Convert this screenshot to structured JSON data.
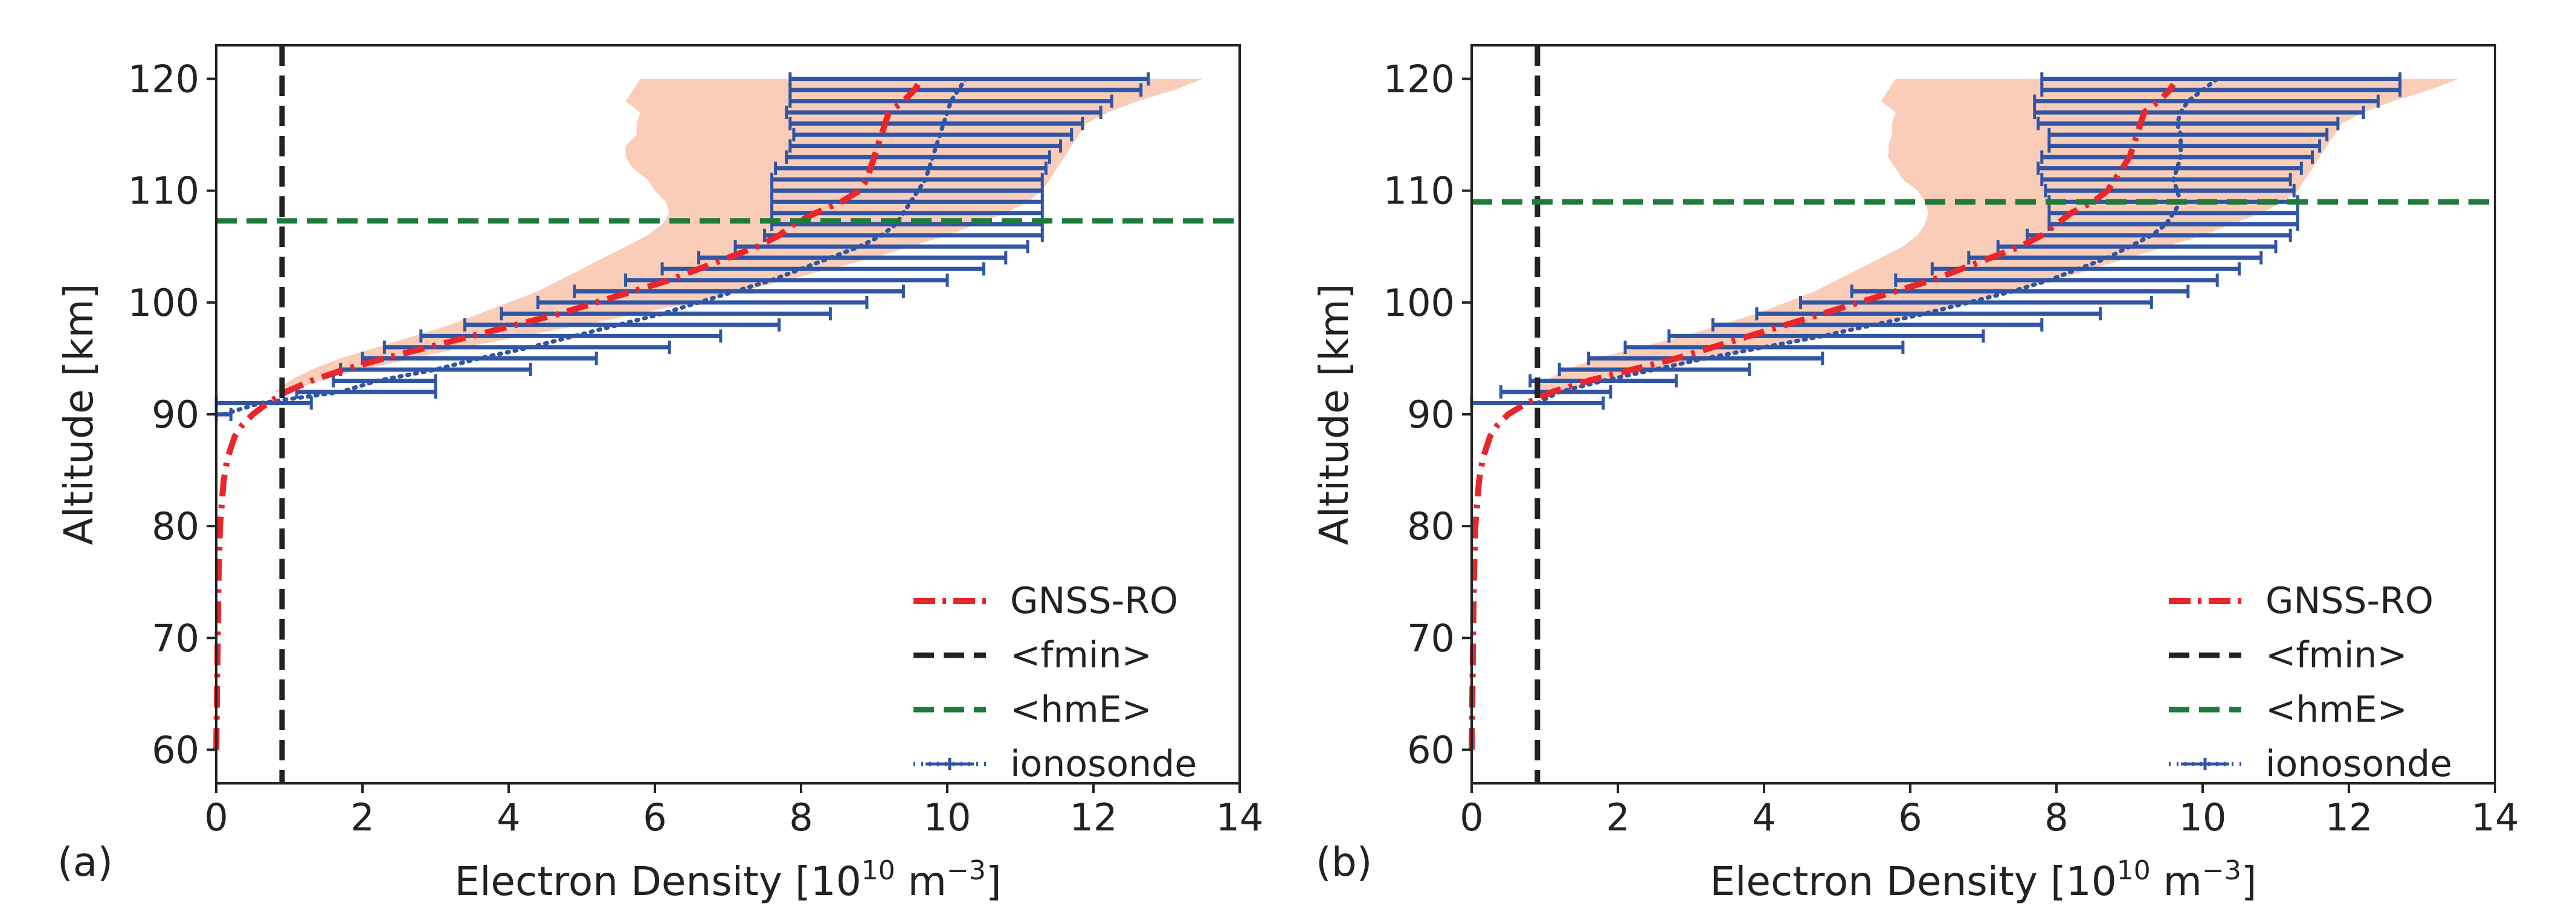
{
  "chart_data": [
    {
      "type": "line",
      "panel_label": "(a)",
      "xlabel": "Electron Density [10",
      "xlabel_exp": "10",
      "xlabel_unit": " m",
      "xlabel_unit_exp": "−3",
      "xlabel_close": "]",
      "ylabel": "Altitude [km]",
      "xlim": [
        0,
        14
      ],
      "ylim": [
        57,
        123
      ],
      "xticks": [
        0,
        2,
        4,
        6,
        8,
        10,
        12,
        14
      ],
      "yticks": [
        60,
        70,
        80,
        90,
        100,
        110,
        120
      ],
      "legend_position": "lower-right",
      "legend": [
        "GNSS-RO",
        "<fmin>",
        "<hmE>",
        "ionosonde"
      ],
      "fmin": 0.9,
      "hmE": 107.3,
      "gnss_ro": {
        "altitude": [
          60,
          65,
          70,
          75,
          80,
          84,
          86,
          88,
          89,
          90,
          91,
          92,
          93,
          94,
          95,
          96,
          97,
          98,
          99,
          100,
          101,
          102,
          103,
          104,
          105,
          106,
          107,
          108,
          109,
          110,
          111,
          112,
          113,
          114,
          115,
          116,
          117,
          118,
          119,
          119.5
        ],
        "density": [
          0.0,
          0.01,
          0.02,
          0.03,
          0.05,
          0.1,
          0.15,
          0.25,
          0.35,
          0.5,
          0.7,
          0.95,
          1.3,
          1.75,
          2.3,
          2.9,
          3.5,
          4.1,
          4.7,
          5.2,
          5.7,
          6.2,
          6.6,
          7.0,
          7.4,
          7.7,
          7.9,
          8.2,
          8.55,
          8.8,
          8.9,
          8.95,
          9.0,
          9.05,
          9.1,
          9.15,
          9.2,
          9.4,
          9.55,
          9.6
        ]
      },
      "spread_band": {
        "altitude": [
          92,
          93,
          94,
          95,
          96,
          97,
          98,
          99,
          100,
          101,
          102,
          103,
          104,
          105,
          106,
          107,
          108,
          109,
          110,
          111,
          112,
          113,
          114,
          115,
          116,
          117,
          118,
          119,
          120
        ],
        "lower": [
          0.8,
          1.0,
          1.3,
          1.7,
          2.2,
          2.7,
          3.2,
          3.6,
          4.0,
          4.4,
          4.7,
          5.0,
          5.3,
          5.6,
          5.9,
          6.1,
          6.2,
          6.15,
          6.0,
          5.9,
          5.7,
          5.6,
          5.6,
          5.75,
          5.75,
          5.8,
          5.6,
          5.7,
          5.8
        ],
        "upper": [
          1.0,
          1.4,
          2.0,
          2.7,
          3.4,
          4.2,
          5.0,
          5.8,
          6.5,
          7.2,
          7.8,
          8.4,
          9.0,
          9.5,
          10.0,
          10.4,
          10.8,
          11.1,
          11.3,
          11.4,
          11.5,
          11.6,
          11.7,
          11.8,
          11.9,
          12.2,
          12.6,
          13.1,
          13.5
        ]
      },
      "ionosonde": {
        "altitude": [
          90,
          91,
          92,
          93,
          94,
          95,
          96,
          97,
          98,
          99,
          100,
          101,
          102,
          103,
          104,
          105,
          106,
          107,
          108,
          109,
          110,
          111,
          112,
          113,
          114,
          115,
          116,
          117,
          118,
          119,
          120
        ],
        "density": [
          0.1,
          0.6,
          1.7,
          2.2,
          3.0,
          3.6,
          4.3,
          4.9,
          5.5,
          6.1,
          6.6,
          7.1,
          7.6,
          8.0,
          8.4,
          8.8,
          9.1,
          9.3,
          9.4,
          9.5,
          9.6,
          9.7,
          9.75,
          9.8,
          9.85,
          9.9,
          9.95,
          10.0,
          10.05,
          10.15,
          10.25
        ],
        "xerr_low": [
          0.1,
          0.6,
          0.6,
          0.6,
          1.3,
          1.6,
          2.0,
          2.1,
          2.1,
          2.2,
          2.2,
          2.2,
          2.0,
          1.9,
          1.8,
          1.7,
          1.6,
          1.7,
          1.8,
          1.9,
          2.0,
          2.1,
          2.1,
          2.0,
          2.0,
          2.0,
          2.1,
          2.2,
          2.2,
          2.3,
          2.4
        ],
        "xerr_high": [
          0.1,
          0.7,
          1.3,
          0.8,
          1.3,
          1.6,
          1.9,
          2.0,
          2.2,
          2.3,
          2.3,
          2.3,
          2.4,
          2.5,
          2.4,
          2.3,
          2.2,
          2.0,
          1.9,
          1.8,
          1.7,
          1.6,
          1.6,
          1.6,
          1.7,
          1.8,
          1.9,
          2.1,
          2.2,
          2.5,
          2.5
        ]
      }
    },
    {
      "type": "line",
      "panel_label": "(b)",
      "xlabel": "Electron Density [10",
      "xlabel_exp": "10",
      "xlabel_unit": " m",
      "xlabel_unit_exp": "−3",
      "xlabel_close": "]",
      "ylabel": "Altitude [km]",
      "xlim": [
        0,
        14
      ],
      "ylim": [
        57,
        123
      ],
      "xticks": [
        0,
        2,
        4,
        6,
        8,
        10,
        12,
        14
      ],
      "yticks": [
        60,
        70,
        80,
        90,
        100,
        110,
        120
      ],
      "legend_position": "lower-right",
      "legend": [
        "GNSS-RO",
        "<fmin>",
        "<hmE>",
        "ionosonde"
      ],
      "fmin": 0.9,
      "hmE": 109.0,
      "gnss_ro": {
        "altitude": [
          60,
          65,
          70,
          75,
          80,
          84,
          86,
          88,
          89,
          90,
          91,
          92,
          93,
          94,
          95,
          96,
          97,
          98,
          99,
          100,
          101,
          102,
          103,
          104,
          105,
          106,
          107,
          108,
          109,
          110,
          111,
          112,
          113,
          114,
          115,
          116,
          117,
          118,
          119,
          119.5
        ],
        "density": [
          0.0,
          0.01,
          0.02,
          0.03,
          0.05,
          0.1,
          0.15,
          0.25,
          0.35,
          0.5,
          0.75,
          1.1,
          1.6,
          2.2,
          2.8,
          3.3,
          3.8,
          4.3,
          4.8,
          5.3,
          5.8,
          6.3,
          6.7,
          7.1,
          7.5,
          7.8,
          8.0,
          8.2,
          8.5,
          8.7,
          8.8,
          8.9,
          9.0,
          9.05,
          9.1,
          9.15,
          9.2,
          9.4,
          9.55,
          9.6
        ]
      },
      "spread_band": {
        "altitude": [
          92,
          93,
          94,
          95,
          96,
          97,
          98,
          99,
          100,
          101,
          102,
          103,
          104,
          105,
          106,
          107,
          108,
          109,
          110,
          111,
          112,
          113,
          114,
          115,
          116,
          117,
          118,
          119,
          120
        ],
        "lower": [
          0.8,
          1.0,
          1.3,
          1.7,
          2.3,
          2.9,
          3.4,
          3.9,
          4.3,
          4.7,
          5.0,
          5.3,
          5.6,
          5.9,
          6.1,
          6.2,
          6.25,
          6.2,
          6.1,
          5.9,
          5.8,
          5.7,
          5.7,
          5.75,
          5.75,
          5.8,
          5.6,
          5.7,
          5.8
        ],
        "upper": [
          1.2,
          1.8,
          2.6,
          3.3,
          4.0,
          4.8,
          5.5,
          6.2,
          6.8,
          7.4,
          8.0,
          8.5,
          9.0,
          9.5,
          10.0,
          10.4,
          10.8,
          11.1,
          11.3,
          11.4,
          11.5,
          11.6,
          11.7,
          11.8,
          11.9,
          12.2,
          12.6,
          13.1,
          13.5
        ]
      },
      "ionosonde": {
        "altitude": [
          91,
          92,
          93,
          94,
          95,
          96,
          97,
          98,
          99,
          100,
          101,
          102,
          103,
          104,
          105,
          106,
          107,
          108,
          109,
          110,
          111,
          112,
          113,
          114,
          115,
          116,
          117,
          118,
          119,
          120
        ],
        "density": [
          0.9,
          1.2,
          1.8,
          2.5,
          3.2,
          4.0,
          4.8,
          5.5,
          6.2,
          6.8,
          7.4,
          7.9,
          8.3,
          8.7,
          9.0,
          9.3,
          9.5,
          9.6,
          9.7,
          9.65,
          9.6,
          9.65,
          9.7,
          9.7,
          9.7,
          9.65,
          9.7,
          9.8,
          10.0,
          10.2
        ],
        "xerr_low": [
          0.9,
          0.8,
          1.0,
          1.3,
          1.6,
          1.9,
          2.1,
          2.2,
          2.3,
          2.3,
          2.2,
          2.1,
          2.0,
          1.9,
          1.8,
          1.7,
          1.6,
          1.7,
          1.8,
          1.8,
          1.8,
          1.9,
          1.9,
          1.8,
          1.8,
          1.9,
          2.0,
          2.1,
          2.2,
          2.4
        ],
        "xerr_high": [
          0.9,
          0.7,
          1.0,
          1.3,
          1.6,
          1.9,
          2.2,
          2.3,
          2.4,
          2.5,
          2.4,
          2.3,
          2.2,
          2.1,
          2.0,
          1.9,
          1.8,
          1.7,
          1.6,
          1.6,
          1.6,
          1.7,
          1.8,
          1.9,
          2.0,
          2.2,
          2.5,
          2.6,
          2.7,
          2.5
        ]
      }
    }
  ],
  "colors": {
    "gnss_ro": "#e8262b",
    "fmin": "#222222",
    "hmE": "#1e7b3c",
    "ionosonde": "#2f55a4",
    "band": "#f9cdb8",
    "axis": "#222222"
  }
}
